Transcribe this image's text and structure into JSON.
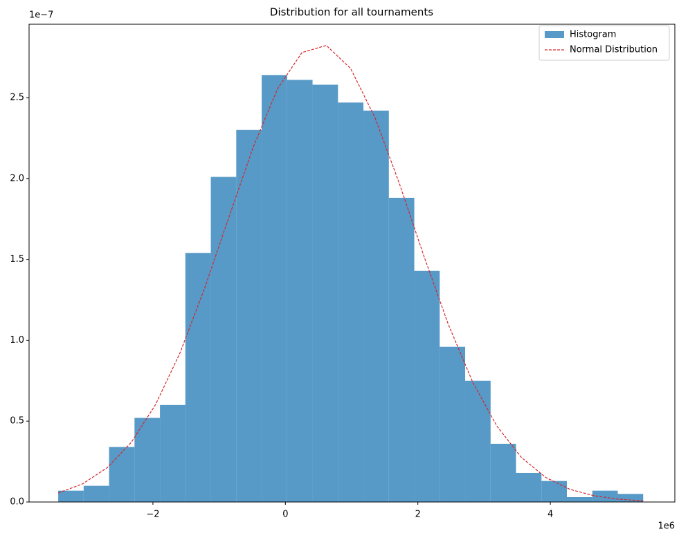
{
  "chart_data": {
    "type": "histogram",
    "title": "Distribution for all tournaments",
    "x_offset_label": "1e6",
    "y_offset_label": "1e−7",
    "xlim": [
      -3.87,
      5.88
    ],
    "ylim": [
      0,
      2.954
    ],
    "xticks": [
      {
        "value": -2,
        "label": "−2"
      },
      0,
      2,
      4
    ],
    "yticks": [
      {
        "value": 0,
        "label": "0.0"
      },
      0.5,
      {
        "value": 1,
        "label": "1.0"
      },
      1.5,
      {
        "value": 2,
        "label": "2.0"
      },
      2.5
    ],
    "grid": false,
    "legend": "upper right",
    "series": [
      {
        "name": "Histogram",
        "type": "histogram",
        "color": "#5799c7",
        "bins": [
          -3.43,
          -3.046,
          -2.662,
          -2.278,
          -1.894,
          -1.51,
          -1.126,
          -0.742,
          -0.358,
          0.026,
          0.41,
          0.794,
          1.178,
          1.562,
          1.946,
          2.33,
          2.714,
          3.098,
          3.482,
          3.866,
          4.25,
          4.634,
          5.018,
          5.402
        ],
        "values": [
          0.07,
          0.1,
          0.34,
          0.52,
          0.6,
          1.54,
          2.01,
          2.3,
          2.64,
          2.61,
          2.58,
          2.47,
          2.42,
          1.88,
          1.43,
          0.96,
          0.75,
          0.36,
          0.18,
          0.13,
          0.03,
          0.07,
          0.05
        ]
      },
      {
        "name": "Normal Distribution",
        "type": "line",
        "color": "#d62728",
        "dashed": true,
        "x": [
          -3.43,
          -3.062,
          -2.694,
          -2.326,
          -1.958,
          -1.59,
          -1.222,
          -0.854,
          -0.486,
          -0.118,
          0.25,
          0.618,
          0.986,
          1.354,
          1.722,
          2.09,
          2.458,
          2.826,
          3.194,
          3.562,
          3.93,
          4.298,
          4.666,
          5.034,
          5.402
        ],
        "values": [
          0.056,
          0.112,
          0.211,
          0.369,
          0.604,
          0.923,
          1.319,
          1.76,
          2.194,
          2.555,
          2.779,
          2.823,
          2.68,
          2.375,
          1.968,
          1.522,
          1.1,
          0.743,
          0.469,
          0.276,
          0.152,
          0.078,
          0.038,
          0.017,
          0.007
        ]
      }
    ]
  }
}
